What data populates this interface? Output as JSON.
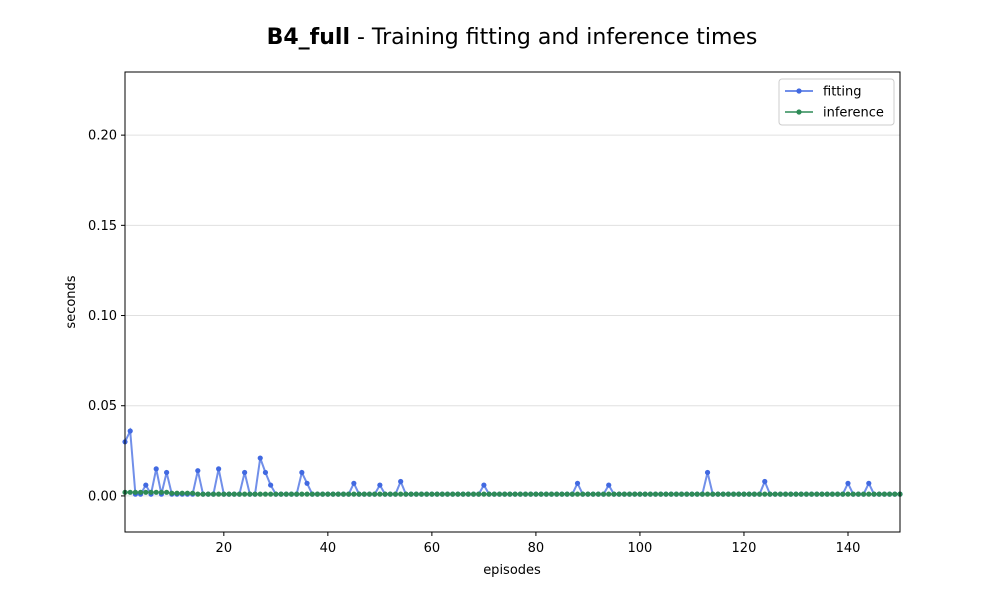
{
  "chart_data": {
    "type": "line",
    "title_bold": "B4_full",
    "title_rest": " - Training fitting and inference times",
    "xlabel": "episodes",
    "ylabel": "seconds",
    "xlim": [
      1,
      150
    ],
    "ylim": [
      -0.02,
      0.235
    ],
    "xticks": [
      20,
      40,
      60,
      80,
      100,
      120,
      140
    ],
    "yticks": [
      0.0,
      0.05,
      0.1,
      0.15,
      0.2
    ],
    "ytick_labels": [
      "0.00",
      "0.05",
      "0.10",
      "0.15",
      "0.20"
    ],
    "grid": "horizontal",
    "legend_position": "top-right",
    "series": [
      {
        "name": "fitting",
        "color": "#4169e1",
        "spikes": [
          [
            1,
            0.03
          ],
          [
            2,
            0.036
          ],
          [
            5,
            0.006
          ],
          [
            7,
            0.015
          ],
          [
            9,
            0.013
          ],
          [
            15,
            0.014
          ],
          [
            19,
            0.015
          ],
          [
            24,
            0.013
          ],
          [
            27,
            0.021
          ],
          [
            28,
            0.013
          ],
          [
            29,
            0.006
          ],
          [
            35,
            0.013
          ],
          [
            36,
            0.007
          ],
          [
            45,
            0.007
          ],
          [
            50,
            0.006
          ],
          [
            54,
            0.008
          ],
          [
            70,
            0.006
          ],
          [
            88,
            0.007
          ],
          [
            94,
            0.006
          ],
          [
            113,
            0.013
          ],
          [
            124,
            0.008
          ],
          [
            140,
            0.007
          ],
          [
            144,
            0.007
          ]
        ],
        "baseline": 0.001
      },
      {
        "name": "inference",
        "color": "#2e8b57",
        "spikes": [
          [
            1,
            0.002
          ],
          [
            2,
            0.002
          ],
          [
            3,
            0.002
          ],
          [
            4,
            0.002
          ],
          [
            5,
            0.002
          ],
          [
            6,
            0.002
          ],
          [
            7,
            0.002
          ],
          [
            8,
            0.002
          ],
          [
            9,
            0.002
          ],
          [
            10,
            0.0015
          ],
          [
            11,
            0.0015
          ],
          [
            12,
            0.0015
          ],
          [
            13,
            0.0015
          ],
          [
            14,
            0.0015
          ]
        ],
        "baseline": 0.001
      }
    ],
    "legend": [
      "fitting",
      "inference"
    ]
  }
}
